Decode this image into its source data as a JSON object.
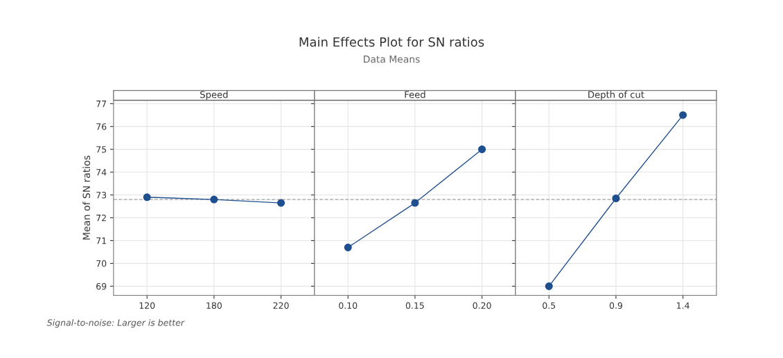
{
  "chart_data": [
    {
      "type": "line",
      "title": "Speed",
      "ylabel": "Mean of SN ratios",
      "categories": [
        "120",
        "180",
        "220"
      ],
      "series": [
        {
          "color": "#1f4f8f",
          "values": [
            72.9,
            72.8,
            72.65
          ]
        }
      ],
      "ylim": [
        68.6,
        77.15
      ],
      "yticks": [
        69,
        70,
        71,
        72,
        73,
        74,
        75,
        76,
        77
      ],
      "ref_lines": [
        {
          "axis": "y",
          "value": 72.8,
          "color": "#a0a0a0",
          "line_style": "dashed"
        }
      ],
      "grid": true,
      "marker": "circle",
      "annotations": [
        "Main Effects Plot for SN ratios",
        "Data Means",
        "Signal-to-noise: Larger is better"
      ]
    },
    {
      "type": "line",
      "title": "Feed",
      "categories": [
        "0.10",
        "0.15",
        "0.20"
      ],
      "series": [
        {
          "color": "#1f4f8f",
          "values": [
            70.7,
            72.65,
            75.0
          ]
        }
      ],
      "ylim": [
        68.6,
        77.15
      ],
      "yticks": [
        69,
        70,
        71,
        72,
        73,
        74,
        75,
        76,
        77
      ],
      "tick_labels": "x",
      "ref_lines": [
        {
          "axis": "y",
          "value": 72.8,
          "color": "#a0a0a0",
          "line_style": "dashed"
        }
      ],
      "grid": true,
      "marker": "circle"
    },
    {
      "type": "line",
      "title": "Depth of cut",
      "categories": [
        "0.5",
        "0.9",
        "1.4"
      ],
      "series": [
        {
          "color": "#1f4f8f",
          "values": [
            69.0,
            72.85,
            76.5
          ]
        }
      ],
      "ylim": [
        68.6,
        77.15
      ],
      "yticks": [
        69,
        70,
        71,
        72,
        73,
        74,
        75,
        76,
        77
      ],
      "tick_labels": "x",
      "ref_lines": [
        {
          "axis": "y",
          "value": 72.8,
          "color": "#a0a0a0",
          "line_style": "dashed"
        }
      ],
      "grid": true,
      "marker": "circle"
    }
  ]
}
